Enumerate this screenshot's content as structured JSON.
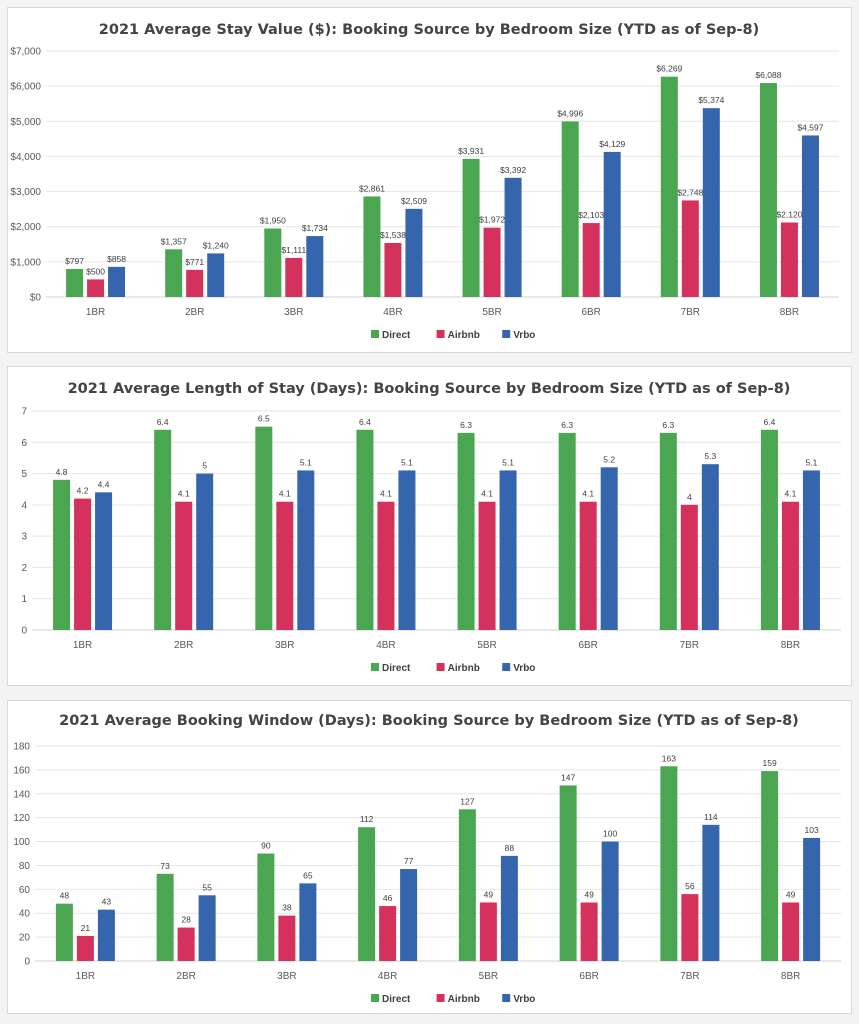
{
  "colors": {
    "Direct": "#4ba651",
    "Airbnb": "#d5315d",
    "Vrbo": "#3465ad"
  },
  "chart_data": [
    {
      "type": "bar",
      "title": "2021 Average Stay Value ($): Booking Source by Bedroom Size (YTD as of Sep-8)",
      "categories": [
        "1BR",
        "2BR",
        "3BR",
        "4BR",
        "5BR",
        "6BR",
        "7BR",
        "8BR"
      ],
      "ylim": [
        0,
        7000
      ],
      "yticks": [
        0,
        1000,
        2000,
        3000,
        4000,
        5000,
        6000,
        7000
      ],
      "ytick_labels": [
        "$0",
        "$1,000",
        "$2,000",
        "$3,000",
        "$4,000",
        "$5,000",
        "$6,000",
        "$7,000"
      ],
      "grid": true,
      "legend": "bottom",
      "series": [
        {
          "name": "Direct",
          "values": [
            797,
            1357,
            1950,
            2861,
            3931,
            4996,
            6269,
            6088
          ],
          "labels": [
            "$797",
            "$1,357",
            "$1,950",
            "$2,861",
            "$3,931",
            "$4,996",
            "$6,269",
            "$6,088"
          ]
        },
        {
          "name": "Airbnb",
          "values": [
            500,
            771,
            1111,
            1538,
            1972,
            2103,
            2748,
            2120
          ],
          "labels": [
            "$500",
            "$771",
            "$1,111",
            "$1,538",
            "$1,972",
            "$2,103",
            "$2,748",
            "$2,120"
          ]
        },
        {
          "name": "Vrbo",
          "values": [
            858,
            1240,
            1734,
            2509,
            3392,
            4129,
            5374,
            4597
          ],
          "labels": [
            "$858",
            "$1,240",
            "$1,734",
            "$2,509",
            "$3,392",
            "$4,129",
            "$5,374",
            "$4,597"
          ]
        }
      ]
    },
    {
      "type": "bar",
      "title": "2021 Average Length of Stay (Days): Booking Source by Bedroom Size (YTD as of Sep-8)",
      "categories": [
        "1BR",
        "2BR",
        "3BR",
        "4BR",
        "5BR",
        "6BR",
        "7BR",
        "8BR"
      ],
      "ylim": [
        0,
        7
      ],
      "yticks": [
        0,
        1,
        2,
        3,
        4,
        5,
        6,
        7
      ],
      "ytick_labels": [
        "0",
        "1",
        "2",
        "3",
        "4",
        "5",
        "6",
        "7"
      ],
      "grid": true,
      "legend": "bottom",
      "series": [
        {
          "name": "Direct",
          "values": [
            4.8,
            6.4,
            6.5,
            6.4,
            6.3,
            6.3,
            6.3,
            6.4
          ],
          "labels": [
            "4.8",
            "6.4",
            "6.5",
            "6.4",
            "6.3",
            "6.3",
            "6.3",
            "6.4"
          ]
        },
        {
          "name": "Airbnb",
          "values": [
            4.2,
            4.1,
            4.1,
            4.1,
            4.1,
            4.1,
            4,
            4.1
          ],
          "labels": [
            "4.2",
            "4.1",
            "4.1",
            "4.1",
            "4.1",
            "4.1",
            "4",
            "4.1"
          ]
        },
        {
          "name": "Vrbo",
          "values": [
            4.4,
            5,
            5.1,
            5.1,
            5.1,
            5.2,
            5.3,
            5.1
          ],
          "labels": [
            "4.4",
            "5",
            "5.1",
            "5.1",
            "5.1",
            "5.2",
            "5.3",
            "5.1"
          ]
        }
      ]
    },
    {
      "type": "bar",
      "title": "2021 Average Booking Window (Days): Booking Source by Bedroom Size (YTD as of Sep-8)",
      "categories": [
        "1BR",
        "2BR",
        "3BR",
        "4BR",
        "5BR",
        "6BR",
        "7BR",
        "8BR"
      ],
      "ylim": [
        0,
        180
      ],
      "yticks": [
        0,
        20,
        40,
        60,
        80,
        100,
        120,
        140,
        160,
        180
      ],
      "ytick_labels": [
        "0",
        "20",
        "40",
        "60",
        "80",
        "100",
        "120",
        "140",
        "160",
        "180"
      ],
      "grid": true,
      "legend": "bottom",
      "series": [
        {
          "name": "Direct",
          "values": [
            48,
            73,
            90,
            112,
            127,
            147,
            163,
            159
          ],
          "labels": [
            "48",
            "73",
            "90",
            "112",
            "127",
            "147",
            "163",
            "159"
          ]
        },
        {
          "name": "Airbnb",
          "values": [
            21,
            28,
            38,
            46,
            49,
            49,
            56,
            49
          ],
          "labels": [
            "21",
            "28",
            "38",
            "46",
            "49",
            "49",
            "56",
            "49"
          ]
        },
        {
          "name": "Vrbo",
          "values": [
            43,
            55,
            65,
            77,
            88,
            100,
            114,
            103
          ],
          "labels": [
            "43",
            "55",
            "65",
            "77",
            "88",
            "100",
            "114",
            "103"
          ]
        }
      ]
    }
  ]
}
